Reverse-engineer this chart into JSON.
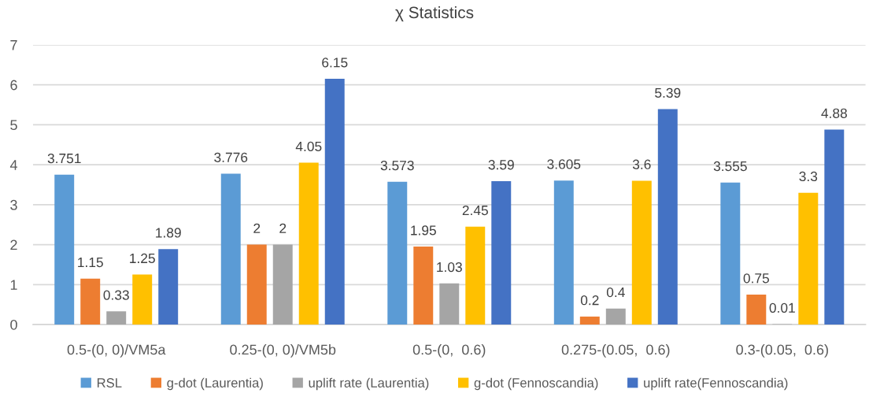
{
  "chart_data": {
    "type": "bar",
    "title": "χ Statistics",
    "categories": [
      "0.5-(0, 0)/VM5a",
      "0.25-(0, 0)/VM5b",
      "0.5-(0,  0.6)",
      "0.275-(0.05,  0.6)",
      "0.3-(0.05,  0.6)"
    ],
    "series": [
      {
        "name": "RSL",
        "color": "#5b9bd5",
        "values": [
          3.751,
          3.776,
          3.573,
          3.605,
          3.555
        ]
      },
      {
        "name": "g-dot (Laurentia)",
        "color": "#ed7d31",
        "values": [
          1.15,
          2,
          1.95,
          0.2,
          0.75
        ]
      },
      {
        "name": "uplift rate (Laurentia)",
        "color": "#a5a5a5",
        "values": [
          0.33,
          2,
          1.03,
          0.4,
          0.01
        ]
      },
      {
        "name": "g-dot (Fennoscandia)",
        "color": "#ffc000",
        "values": [
          1.25,
          4.05,
          2.45,
          3.6,
          3.3
        ]
      },
      {
        "name": "uplift rate(Fennoscandia)",
        "color": "#4472c4",
        "values": [
          1.89,
          6.15,
          3.59,
          5.39,
          4.88
        ]
      }
    ],
    "ylim": [
      0,
      7
    ],
    "yticks": [
      0,
      1,
      2,
      3,
      4,
      5,
      6,
      7
    ],
    "grid": "y",
    "legend": "bottom",
    "data_labels": true
  }
}
